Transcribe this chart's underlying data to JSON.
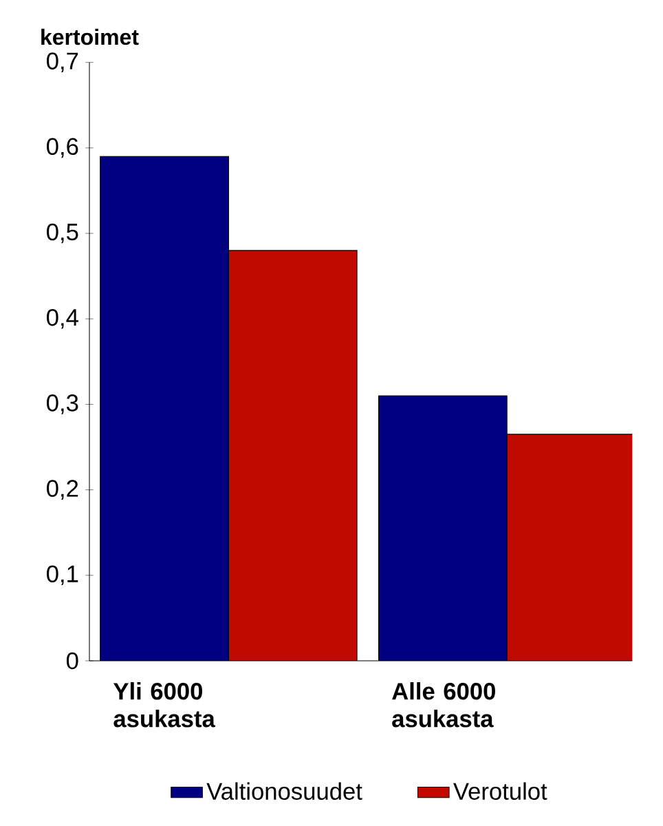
{
  "chart_data": {
    "type": "bar",
    "ylabel": "kertoimet",
    "categories": [
      "Yli 6000 asukasta",
      "Alle 6000 asukasta"
    ],
    "series": [
      {
        "name": "Valtionosuudet",
        "color": "#000080",
        "values": [
          0.59,
          0.31
        ]
      },
      {
        "name": "Verotulot",
        "color": "#c00a00",
        "values": [
          0.48,
          0.265
        ]
      }
    ],
    "ylim": [
      0,
      0.7
    ],
    "yticks": [
      0,
      {
        "value": 0.1,
        "label": "0,1"
      },
      {
        "value": 0.2,
        "label": "0,2"
      },
      {
        "value": 0.3,
        "label": "0,3"
      },
      {
        "value": 0.4,
        "label": "0,4"
      },
      {
        "value": 0.5,
        "label": "0,5"
      },
      {
        "value": 0.6,
        "label": "0,6"
      },
      {
        "value": 0.7,
        "label": "0,7"
      }
    ],
    "legend": "bottom"
  }
}
